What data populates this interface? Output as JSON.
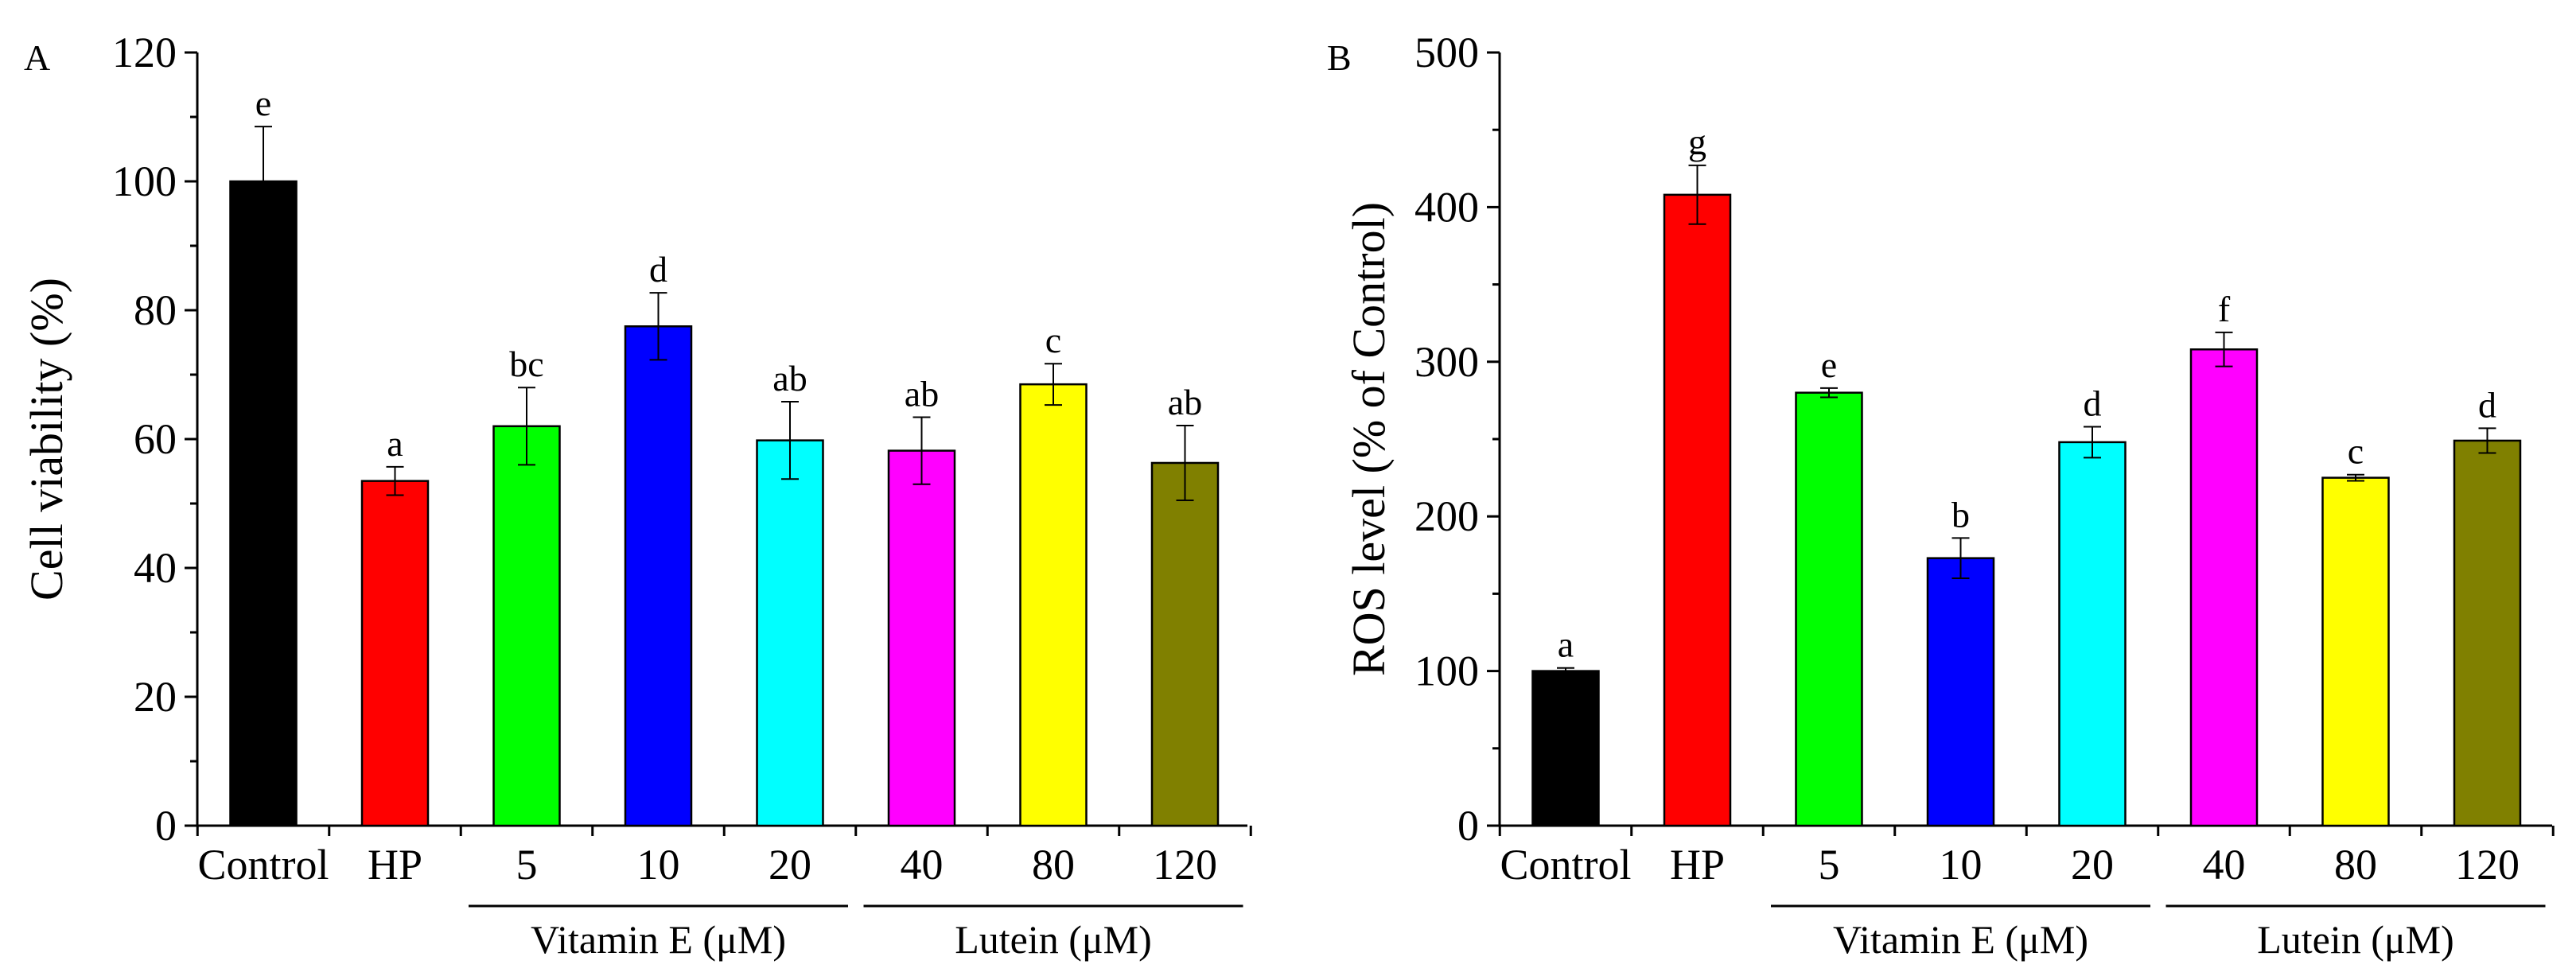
{
  "chart_data": [
    {
      "type": "bar",
      "panel": "A",
      "title": "",
      "xlabel": "",
      "ylabel": "Cell viability (%)",
      "ylim": [
        0,
        120
      ],
      "yticks": [
        0,
        20,
        40,
        60,
        80,
        100,
        120
      ],
      "ytick_labels": [
        "0",
        "20",
        "40",
        "60",
        "80",
        "100",
        "120"
      ],
      "categories": [
        "Control",
        "HP",
        "5",
        "10",
        "20",
        "40",
        "80",
        "120"
      ],
      "values": [
        100,
        53.5,
        62,
        77.5,
        59.8,
        58.2,
        68.5,
        56.3
      ],
      "errors": [
        8.5,
        2.2,
        6,
        5.2,
        6,
        5.2,
        3.2,
        5.8
      ],
      "significance": [
        "e",
        "a",
        "bc",
        "d",
        "ab",
        "ab",
        "c",
        "ab"
      ],
      "colors": [
        "#000000",
        "#ff0000",
        "#00ff00",
        "#0000ff",
        "#00ffff",
        "#ff00ff",
        "#ffff00",
        "#808000"
      ],
      "groups": [
        {
          "label": "Vitamin E (μM)",
          "categories": [
            "5",
            "10",
            "20"
          ]
        },
        {
          "label": "Lutein (μM)",
          "categories": [
            "40",
            "80",
            "120"
          ]
        }
      ]
    },
    {
      "type": "bar",
      "panel": "B",
      "title": "",
      "xlabel": "",
      "ylabel": "ROS level (% of Control)",
      "ylim": [
        0,
        500
      ],
      "yticks": [
        0,
        100,
        200,
        300,
        400,
        500
      ],
      "ytick_labels": [
        "0",
        "100",
        "200",
        "300",
        "400",
        "500"
      ],
      "categories": [
        "Control",
        "HP",
        "5",
        "10",
        "20",
        "40",
        "80",
        "120"
      ],
      "values": [
        100,
        408,
        280,
        173,
        248,
        308,
        225,
        249
      ],
      "errors": [
        2,
        19,
        3,
        13,
        10,
        11,
        2,
        8
      ],
      "significance": [
        "a",
        "g",
        "e",
        "b",
        "d",
        "f",
        "c",
        "d"
      ],
      "colors": [
        "#000000",
        "#ff0000",
        "#00ff00",
        "#0000ff",
        "#00ffff",
        "#ff00ff",
        "#ffff00",
        "#808000"
      ],
      "groups": [
        {
          "label": "Vitamin E (μM)",
          "categories": [
            "5",
            "10",
            "20"
          ]
        },
        {
          "label": "Lutein (μM)",
          "categories": [
            "40",
            "80",
            "120"
          ]
        }
      ]
    }
  ]
}
